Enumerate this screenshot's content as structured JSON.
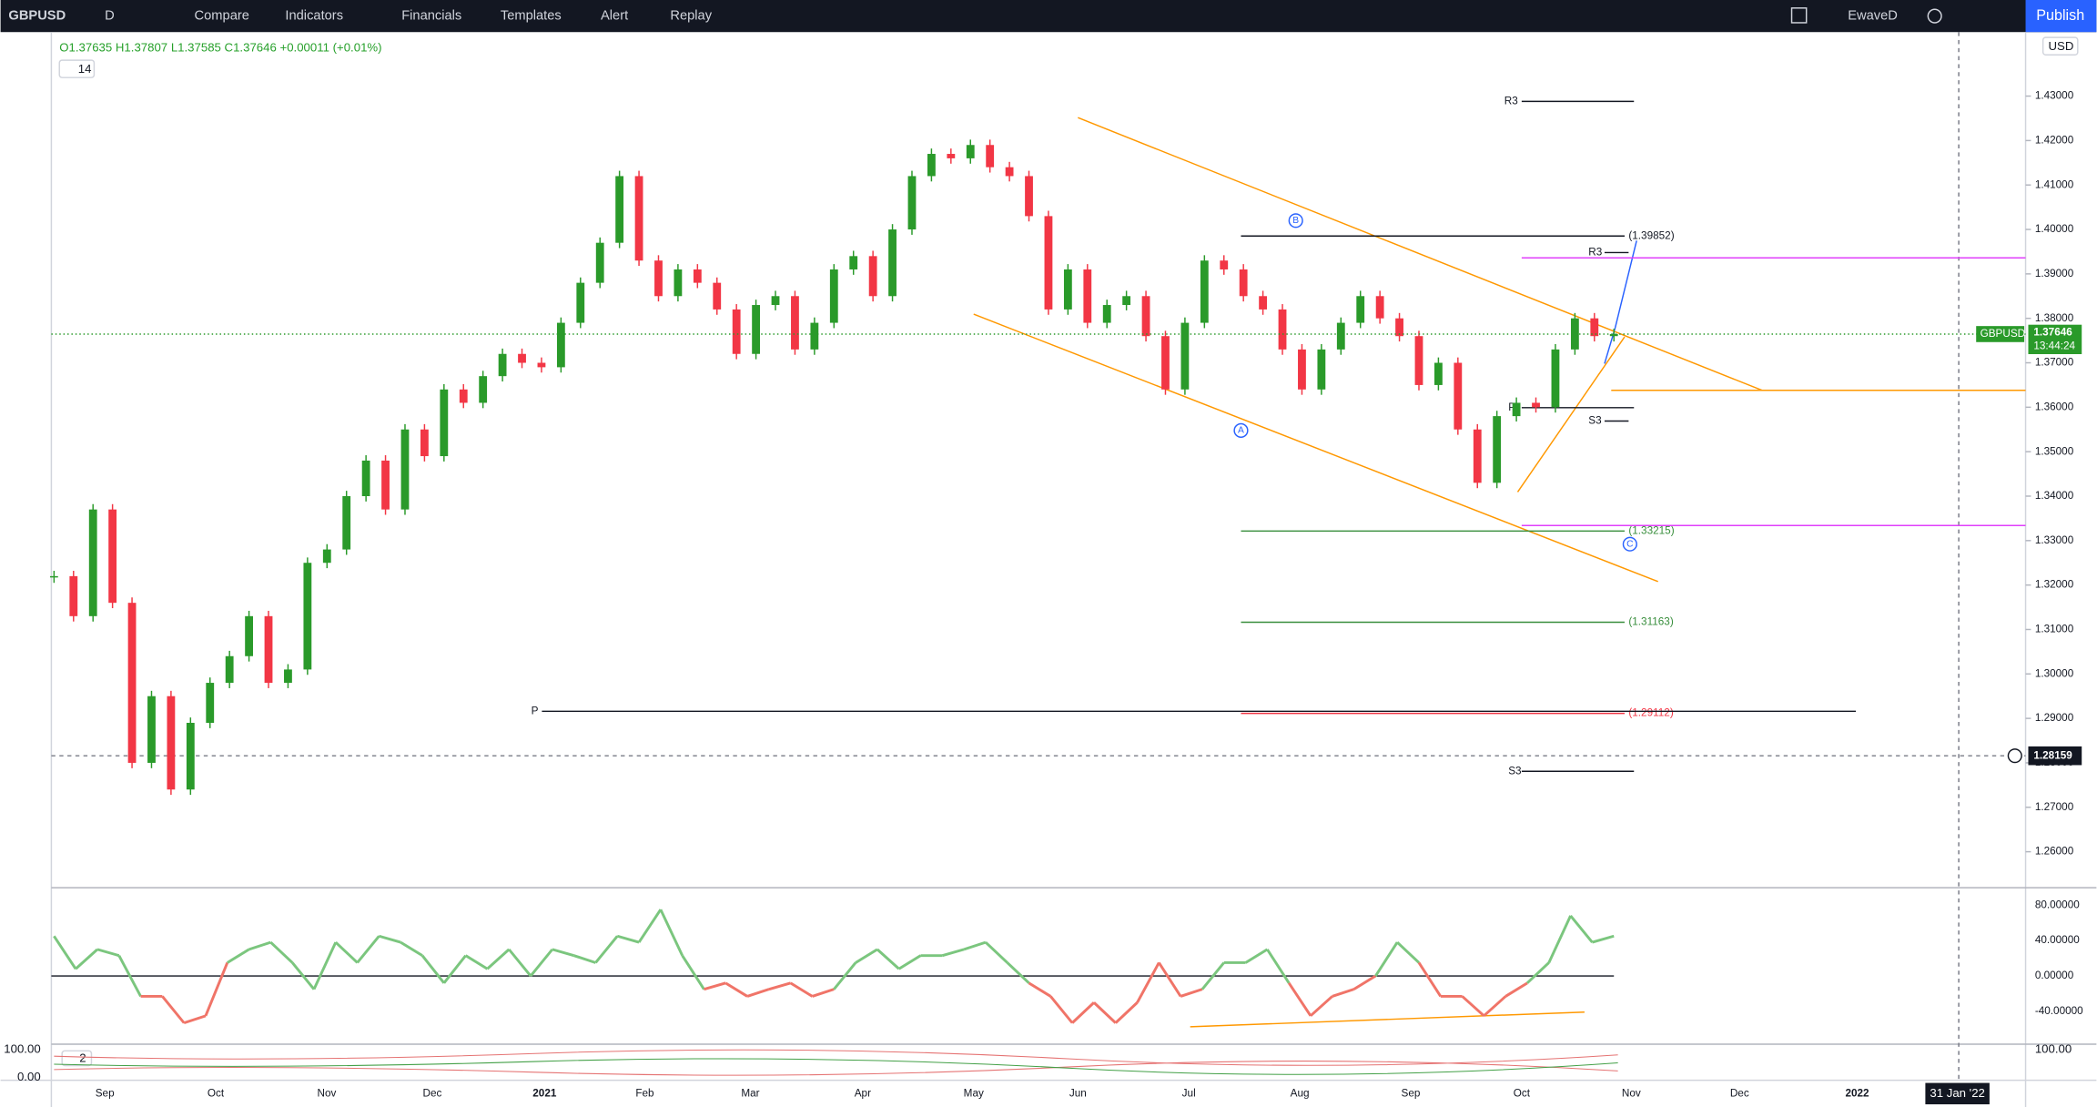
{
  "toolbar": {
    "symbol": "GBPUSD",
    "interval": "D",
    "buttons": [
      "Compare",
      "Indicators",
      "Financials",
      "Templates",
      "Alert",
      "Replay"
    ],
    "layout": "EwaveD",
    "publish": "Publish"
  },
  "chart_data": {
    "type": "candlestick",
    "ohlc_legend": "O1.37635 H1.37807 L1.37585 C1.37646 +0.00011 (+0.01%)",
    "indicator_badge": "14",
    "currency": "USD",
    "up_color": "#2a9a2a",
    "down_color": "#f23645",
    "closes": [
      1.322,
      1.313,
      1.337,
      1.316,
      1.28,
      1.295,
      1.274,
      1.289,
      1.298,
      1.304,
      1.313,
      1.298,
      1.301,
      1.325,
      1.328,
      1.34,
      1.348,
      1.337,
      1.355,
      1.349,
      1.364,
      1.361,
      1.367,
      1.372,
      1.37,
      1.369,
      1.379,
      1.388,
      1.397,
      1.412,
      1.393,
      1.385,
      1.391,
      1.388,
      1.382,
      1.372,
      1.383,
      1.385,
      1.373,
      1.379,
      1.391,
      1.394,
      1.385,
      1.4,
      1.412,
      1.417,
      1.416,
      1.419,
      1.414,
      1.412,
      1.403,
      1.382,
      1.391,
      1.379,
      1.383,
      1.385,
      1.376,
      1.364,
      1.379,
      1.393,
      1.391,
      1.385,
      1.382,
      1.373,
      1.364,
      1.373,
      1.379,
      1.385,
      1.38,
      1.376,
      1.365,
      1.37,
      1.355,
      1.343,
      1.358,
      1.361,
      1.36,
      1.373,
      1.38,
      1.376,
      1.37646
    ],
    "ylim": [
      1.2519,
      1.4444
    ],
    "yticks": [
      {
        "value": 1.26,
        "label": "1.26000"
      },
      {
        "value": 1.27,
        "label": "1.27000"
      },
      {
        "value": 1.28,
        "label": "1.28000"
      },
      {
        "value": 1.29,
        "label": "1.29000"
      },
      {
        "value": 1.3,
        "label": "1.30000"
      },
      {
        "value": 1.31,
        "label": "1.31000"
      },
      {
        "value": 1.32,
        "label": "1.32000"
      },
      {
        "value": 1.33,
        "label": "1.33000"
      },
      {
        "value": 1.34,
        "label": "1.34000"
      },
      {
        "value": 1.35,
        "label": "1.35000"
      },
      {
        "value": 1.36,
        "label": "1.36000"
      },
      {
        "value": 1.37,
        "label": "1.37000"
      },
      {
        "value": 1.38,
        "label": "1.38000"
      },
      {
        "value": 1.39,
        "label": "1.39000"
      },
      {
        "value": 1.4,
        "label": "1.40000"
      },
      {
        "value": 1.41,
        "label": "1.41000"
      },
      {
        "value": 1.42,
        "label": "1.42000"
      },
      {
        "value": 1.43,
        "label": "1.43000"
      }
    ],
    "time_labels": [
      "Sep",
      "Oct",
      "Nov",
      "Dec",
      "2021",
      "Feb",
      "Mar",
      "Apr",
      "May",
      "Jun",
      "Jul",
      "Aug",
      "Sep",
      "Oct",
      "Nov",
      "Dec",
      "2022"
    ],
    "time_marker": "31 Jan '22",
    "last_price": {
      "symbol": "GBPUSD",
      "value": 1.37646,
      "label": "1.37646",
      "countdown": "13:44:24"
    },
    "crosshair": {
      "value": 1.28159,
      "label": "1.28159"
    },
    "levels": [
      {
        "name": "R3",
        "value": 1.4288,
        "color": "#131722"
      },
      {
        "value": 1.39852,
        "label": "(1.39852)",
        "color": "#131722"
      },
      {
        "name": "R3",
        "value": 1.3948,
        "color": "#131722"
      },
      {
        "name": "P",
        "value": 1.3599,
        "color": "#131722"
      },
      {
        "name": "S3",
        "value": 1.3569,
        "color": "#131722"
      },
      {
        "value": 1.33215,
        "label": "(1.33215)",
        "color": "#388e3c"
      },
      {
        "value": 1.31163,
        "label": "(1.31163)",
        "color": "#388e3c"
      },
      {
        "value": 1.29112,
        "label": "(1.29112)",
        "color": "#f23645"
      },
      {
        "name": "P",
        "value": 1.2916,
        "color": "#131722"
      },
      {
        "name": "S3",
        "value": 1.2781,
        "color": "#131722"
      }
    ],
    "lines": [
      {
        "value": 1.3936,
        "color": "#e040fb"
      },
      {
        "value": 1.3334,
        "color": "#e040fb"
      },
      {
        "value": 1.3638,
        "color": "#ff9800"
      }
    ],
    "wave_labels": [
      "A",
      "B",
      "C"
    ]
  },
  "oscillator": {
    "type": "line",
    "up_color": "#7bc67e",
    "down_color": "#f07468",
    "ylim": [
      -77,
      99.6
    ],
    "yticks": [
      {
        "value": 80,
        "label": "80.00000"
      },
      {
        "value": 40,
        "label": "40.00000"
      },
      {
        "value": 0,
        "label": "0.00000"
      },
      {
        "value": -40,
        "label": "-40.00000"
      }
    ],
    "values": [
      45,
      8,
      30,
      23,
      -23,
      -23,
      -53,
      -45,
      15,
      30,
      38,
      15,
      -15,
      38,
      15,
      45,
      38,
      23,
      -8,
      23,
      8,
      30,
      0,
      30,
      23,
      15,
      45,
      38,
      75,
      23,
      -15,
      -8,
      -23,
      -15,
      -8,
      -23,
      -15,
      15,
      30,
      8,
      23,
      23,
      30,
      38,
      15,
      -8,
      -23,
      -53,
      -30,
      -53,
      -30,
      15,
      -23,
      -15,
      15,
      15,
      30,
      -8,
      -45,
      -23,
      -15,
      0,
      38,
      15,
      -23,
      -23,
      -45,
      -23,
      -8,
      15,
      68,
      38,
      45
    ]
  },
  "bottom_panel": {
    "badge": "2",
    "left_ticks": [
      "100.00",
      "0.00"
    ],
    "right_tick": "100.00"
  }
}
